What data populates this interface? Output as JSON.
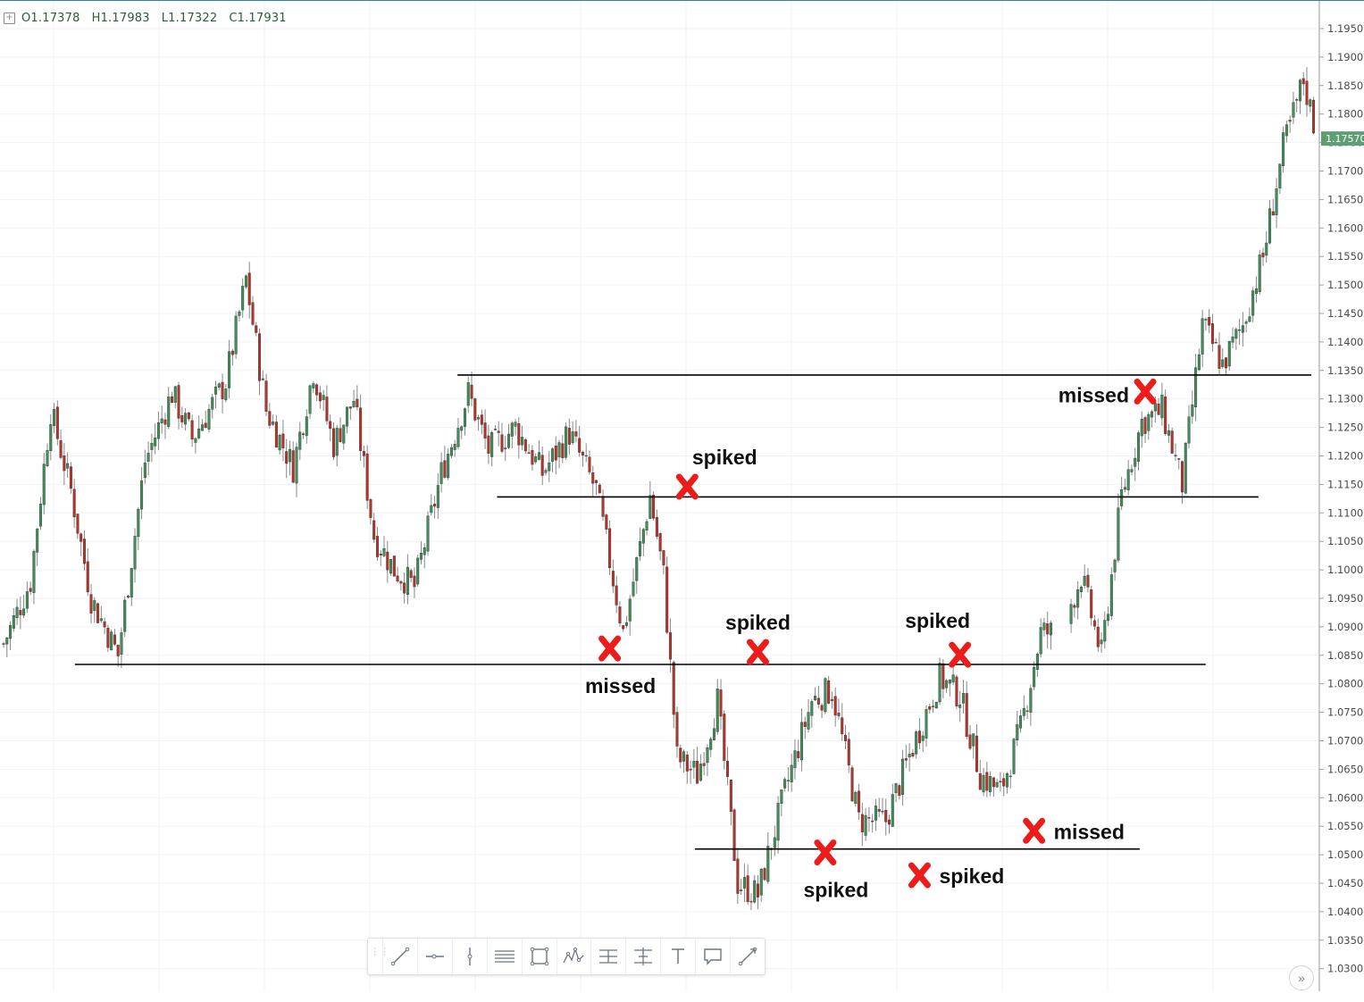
{
  "ohlc": {
    "toggle_icon": "plus-square-icon",
    "open": "O1.17378",
    "high": "H1.17983",
    "low": "L1.17322",
    "close": "C1.17931"
  },
  "colors": {
    "bull": "#3f8f58",
    "bear": "#b83227",
    "wick": "#888888",
    "grid": "#f0f2f4",
    "level_line": "#000000",
    "marker": "#ee1b1b",
    "price_badge": "#5d9e73"
  },
  "chart_data": {
    "type": "candlestick",
    "instrument_price_axis": {
      "ticks": [
        "1.19500",
        "1.19000",
        "1.18500",
        "1.18000",
        "1.17500",
        "1.17000",
        "1.16500",
        "1.16000",
        "1.15500",
        "1.15000",
        "1.14500",
        "1.14000",
        "1.13500",
        "1.13000",
        "1.12500",
        "1.12000",
        "1.11500",
        "1.11000",
        "1.10500",
        "1.10000",
        "1.09500",
        "1.09000",
        "1.08500",
        "1.08000",
        "1.07500",
        "1.07000",
        "1.06500",
        "1.06000",
        "1.05500",
        "1.05000",
        "1.04500",
        "1.04000",
        "1.03500",
        "1.03000"
      ],
      "range": [
        1.0285,
        1.1978
      ]
    },
    "last_price_label": "1.17570",
    "last_price": 1.1757,
    "anchors": [
      {
        "i": 0,
        "v": 1.087
      },
      {
        "i": 8,
        "v": 1.098
      },
      {
        "i": 14,
        "v": 1.128
      },
      {
        "i": 20,
        "v": 1.114
      },
      {
        "i": 26,
        "v": 1.095
      },
      {
        "i": 34,
        "v": 1.085
      },
      {
        "i": 42,
        "v": 1.119
      },
      {
        "i": 50,
        "v": 1.131
      },
      {
        "i": 56,
        "v": 1.123
      },
      {
        "i": 66,
        "v": 1.133
      },
      {
        "i": 72,
        "v": 1.151
      },
      {
        "i": 78,
        "v": 1.128
      },
      {
        "i": 86,
        "v": 1.118
      },
      {
        "i": 92,
        "v": 1.135
      },
      {
        "i": 98,
        "v": 1.122
      },
      {
        "i": 104,
        "v": 1.13
      },
      {
        "i": 110,
        "v": 1.106
      },
      {
        "i": 116,
        "v": 1.1
      },
      {
        "i": 122,
        "v": 1.097
      },
      {
        "i": 130,
        "v": 1.117
      },
      {
        "i": 138,
        "v": 1.131
      },
      {
        "i": 144,
        "v": 1.121
      },
      {
        "i": 152,
        "v": 1.125
      },
      {
        "i": 160,
        "v": 1.117
      },
      {
        "i": 168,
        "v": 1.124
      },
      {
        "i": 176,
        "v": 1.114
      },
      {
        "i": 184,
        "v": 1.089
      },
      {
        "i": 192,
        "v": 1.113
      },
      {
        "i": 196,
        "v": 1.099
      },
      {
        "i": 200,
        "v": 1.067
      },
      {
        "i": 206,
        "v": 1.064
      },
      {
        "i": 212,
        "v": 1.077
      },
      {
        "i": 218,
        "v": 1.045
      },
      {
        "i": 224,
        "v": 1.043
      },
      {
        "i": 232,
        "v": 1.061
      },
      {
        "i": 240,
        "v": 1.077
      },
      {
        "i": 246,
        "v": 1.079
      },
      {
        "i": 254,
        "v": 1.056
      },
      {
        "i": 262,
        "v": 1.056
      },
      {
        "i": 270,
        "v": 1.069
      },
      {
        "i": 278,
        "v": 1.081
      },
      {
        "i": 284,
        "v": 1.078
      },
      {
        "i": 290,
        "v": 1.064
      },
      {
        "i": 296,
        "v": 1.061
      },
      {
        "i": 302,
        "v": 1.072
      },
      {
        "i": 308,
        "v": 1.089
      },
      {
        "i": 314,
        "v": 1.089
      },
      {
        "i": 320,
        "v": 1.099
      },
      {
        "i": 326,
        "v": 1.085
      },
      {
        "i": 332,
        "v": 1.113
      },
      {
        "i": 338,
        "v": 1.126
      },
      {
        "i": 344,
        "v": 1.128
      },
      {
        "i": 350,
        "v": 1.115
      },
      {
        "i": 356,
        "v": 1.143
      },
      {
        "i": 362,
        "v": 1.136
      },
      {
        "i": 368,
        "v": 1.143
      },
      {
        "i": 374,
        "v": 1.155
      },
      {
        "i": 380,
        "v": 1.174
      },
      {
        "i": 386,
        "v": 1.186
      },
      {
        "i": 390,
        "v": 1.176
      }
    ],
    "gaps": [
      [
        312,
        316
      ]
    ],
    "candle_count": 391,
    "seed": 7,
    "levels": [
      {
        "price": 1.1342,
        "x0": 0.34,
        "x1": 0.96
      },
      {
        "price": 1.1128,
        "x0": 0.37,
        "x1": 0.92
      },
      {
        "price": 1.0834,
        "x0": 0.05,
        "x1": 0.88
      },
      {
        "price": 1.051,
        "x0": 0.52,
        "x1": 0.83
      }
    ],
    "annotations": [
      {
        "label": "spiked",
        "i": 203,
        "price": 1.1146,
        "label_pos": "above-right"
      },
      {
        "label": "missed",
        "i": 180,
        "price": 1.0862,
        "label_pos": "below"
      },
      {
        "label": "spiked",
        "i": 224,
        "price": 1.0856,
        "label_pos": "above"
      },
      {
        "label": "spiked",
        "i": 284,
        "price": 1.0851,
        "label_pos": "above-left"
      },
      {
        "label": "spiked",
        "i": 244,
        "price": 1.0504,
        "label_pos": "below"
      },
      {
        "label": "spiked",
        "i": 272,
        "price": 1.0464,
        "label_pos": "right"
      },
      {
        "label": "missed",
        "i": 306,
        "price": 1.0542,
        "label_pos": "right"
      },
      {
        "label": "missed",
        "i": 339,
        "price": 1.1313,
        "label_pos": "left"
      }
    ]
  },
  "toolbar": {
    "tools": [
      {
        "name": "trend-line-icon"
      },
      {
        "name": "horizontal-ray-icon"
      },
      {
        "name": "vertical-line-icon"
      },
      {
        "name": "parallel-channel-icon"
      },
      {
        "name": "rectangle-icon"
      },
      {
        "name": "pattern-icon"
      },
      {
        "name": "long-position-icon"
      },
      {
        "name": "price-range-icon"
      },
      {
        "name": "text-icon"
      },
      {
        "name": "callout-icon"
      },
      {
        "name": "brush-icon"
      }
    ],
    "nav_label": "»"
  }
}
